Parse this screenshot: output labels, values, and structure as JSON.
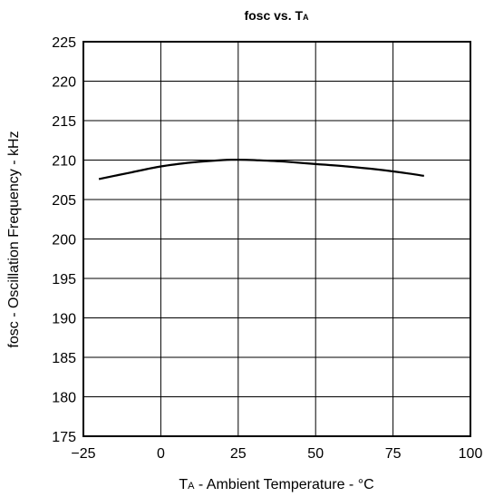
{
  "chart_data": {
    "type": "line",
    "title": {
      "main": "fosc vs. T",
      "sub": "A"
    },
    "xlabel": {
      "prefix": "T",
      "sub": "A",
      "rest": " - Ambient Temperature - °C"
    },
    "ylabel": "fosc - Oscillation Frequency - kHz",
    "xlim": [
      -25,
      100
    ],
    "ylim": [
      175,
      225
    ],
    "xticks": [
      -25,
      0,
      25,
      50,
      75,
      100
    ],
    "xtick_labels": [
      "−25",
      "0",
      "25",
      "50",
      "75",
      "100"
    ],
    "yticks": [
      175,
      180,
      185,
      190,
      195,
      200,
      205,
      210,
      215,
      220,
      225
    ],
    "grid": true,
    "series": [
      {
        "x": [
          -20,
          -10,
          0,
          10,
          20,
          25,
          30,
          40,
          50,
          60,
          70,
          80,
          85
        ],
        "y": [
          207.6,
          208.4,
          209.2,
          209.7,
          210.0,
          210.05,
          210.0,
          209.8,
          209.5,
          209.2,
          208.8,
          208.3,
          208.0
        ]
      }
    ]
  }
}
